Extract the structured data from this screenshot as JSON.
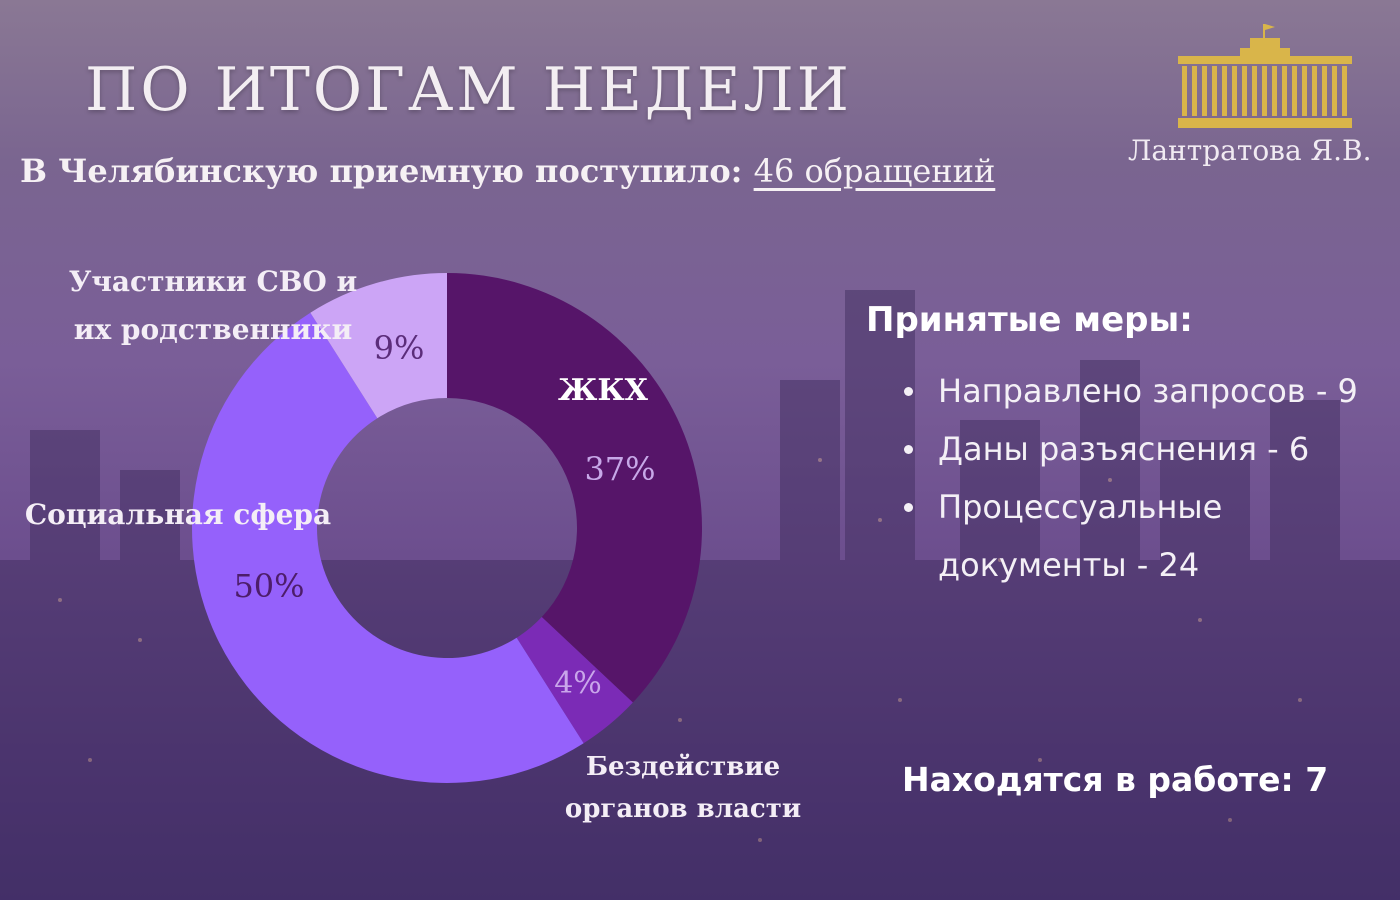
{
  "header": {
    "title": "ПО ИТОГАМ НЕДЕЛИ",
    "subtitle_prefix": "В Челябинскую приемную поступило:",
    "subtitle_count": "46 обращений"
  },
  "logo": {
    "icon": "parliament-building-icon",
    "name": "Лантратова Я.В.",
    "color": "#d9b54a"
  },
  "chart_data": {
    "type": "pie",
    "variant": "donut",
    "title": "",
    "slices": [
      {
        "label": "ЖКХ",
        "value": 37,
        "value_label": "37%",
        "color": "#561569"
      },
      {
        "label": "Бездействие органов власти",
        "label_lines": [
          "Бездействие",
          "органов власти"
        ],
        "value": 4,
        "value_label": "4%",
        "color": "#7b2bb6"
      },
      {
        "label": "Социальная сфера",
        "value": 50,
        "value_label": "50%",
        "color": "#9561fb"
      },
      {
        "label": "Участники СВО и их родственники",
        "label_lines": [
          "Участники СВО и",
          "их родственники"
        ],
        "value": 9,
        "value_label": "9%",
        "color": "#cca5f6"
      }
    ],
    "legend": "none (labels beside slices)"
  },
  "measures": {
    "title": "Принятые меры:",
    "items": [
      "Направлено запросов - 9",
      "Даны разъяснения - 6",
      "Процессуальные документы - 24"
    ]
  },
  "in_work": "Находятся в работе: 7",
  "colors": {
    "text": "#f4f0f6",
    "background": "#7a5e98"
  }
}
